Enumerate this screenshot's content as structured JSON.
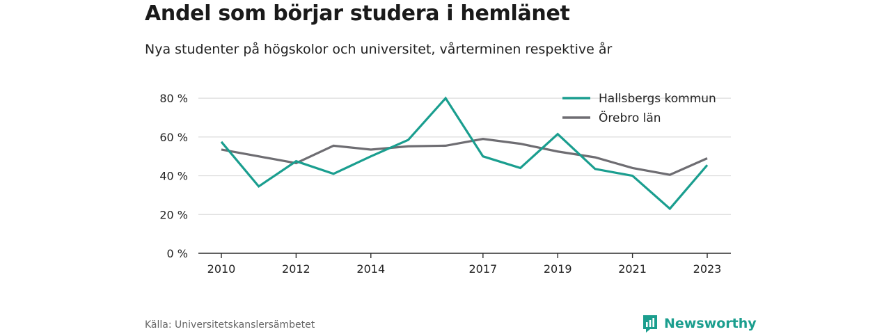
{
  "title": "Andel som börjar studera i hemlänet",
  "subtitle": "Nya studenter på högskolor och universitet, vårterminen respektive år",
  "source": "Källa: Universitetskanslersämbetet",
  "brand": {
    "name": "Newsworthy",
    "color": "#1b9e8e",
    "icon": "newsworthy-logo-icon"
  },
  "chart_data": {
    "type": "line",
    "x": [
      2010,
      2011,
      2012,
      2013,
      2014,
      2015,
      2016,
      2017,
      2018,
      2019,
      2020,
      2021,
      2022,
      2023
    ],
    "x_tick_labels": [
      "2010",
      "2012",
      "2014",
      "2017",
      "2019",
      "2021",
      "2023"
    ],
    "y_tick_labels": [
      "0 %",
      "20 %",
      "40 %",
      "60 %",
      "80 %"
    ],
    "y_ticks": [
      0,
      20,
      40,
      60,
      80
    ],
    "ylim": [
      0,
      84
    ],
    "grid": true,
    "legend_position": "top-right",
    "series": [
      {
        "name": "Hallsbergs kommun",
        "color": "#1a9e8f",
        "values": [
          57.5,
          34.5,
          47.5,
          41,
          50,
          58.5,
          80,
          50,
          44,
          61.5,
          43.5,
          40,
          23,
          45.5
        ]
      },
      {
        "name": "Örebro län",
        "color": "#6e6d72",
        "values": [
          53.5,
          50,
          46.5,
          55.5,
          53.5,
          55.2,
          55.5,
          59,
          56.5,
          52.5,
          49.5,
          44,
          40.5,
          49
        ]
      }
    ]
  }
}
